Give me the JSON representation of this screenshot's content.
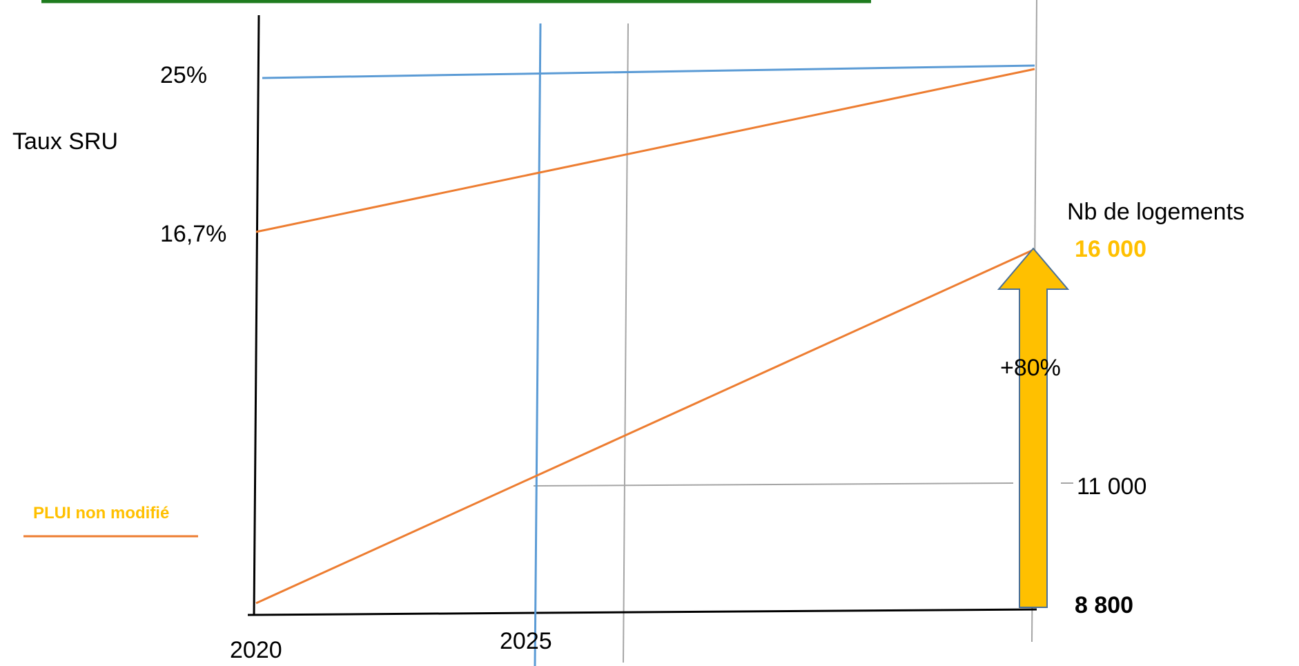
{
  "labels": {
    "y_left_title": "Taux SRU",
    "y_tick_high": "25%",
    "y_tick_low": "16,7%",
    "y_right_title": "Nb de logements",
    "right_value_top": "16 000",
    "right_value_mid": "11 000",
    "right_value_bottom": "8 800",
    "increase": "+80%",
    "x_tick_start": "2020",
    "x_tick_mid": "2025",
    "legend_text": "PLUI non modifié"
  },
  "colors": {
    "top_banner": "#1e7b1e",
    "blue": "#5b9bd5",
    "orange": "#ed7d31",
    "gray": "#a5a5a5",
    "gold": "#ffc000",
    "arrow_outline": "#4a6f96",
    "axis": "#000000"
  }
}
